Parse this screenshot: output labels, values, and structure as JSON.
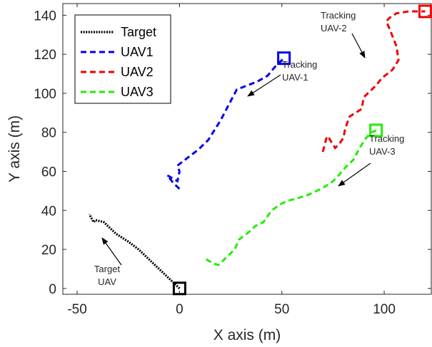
{
  "chart_data": {
    "type": "line",
    "xlabel": "X axis (m)",
    "ylabel": "Y axis (m)",
    "xlim": [
      -57,
      123
    ],
    "ylim": [
      -3,
      146
    ],
    "xticks": [
      -50,
      0,
      50,
      100
    ],
    "yticks": [
      0,
      20,
      40,
      60,
      80,
      100,
      120,
      140
    ],
    "grid": false,
    "legend_position": "top-left",
    "series": [
      {
        "name": "Target",
        "color": "#000000",
        "style": "dotted",
        "points": [
          [
            0,
            0
          ],
          [
            -5,
            5
          ],
          [
            -10,
            10
          ],
          [
            -15,
            15
          ],
          [
            -20,
            20
          ],
          [
            -25,
            24
          ],
          [
            -31,
            28
          ],
          [
            -37,
            34
          ],
          [
            -41,
            35
          ],
          [
            -42,
            34
          ],
          [
            -43,
            36
          ],
          [
            -44,
            38
          ]
        ]
      },
      {
        "name": "UAV1",
        "color": "#0000ee",
        "style": "dashed",
        "points": [
          [
            0,
            51
          ],
          [
            -3,
            54
          ],
          [
            -6,
            58
          ],
          [
            -1,
            55
          ],
          [
            0,
            60
          ],
          [
            -1,
            63
          ],
          [
            4,
            67
          ],
          [
            9,
            71
          ],
          [
            14,
            76
          ],
          [
            17,
            81
          ],
          [
            20,
            86
          ],
          [
            23,
            92
          ],
          [
            26,
            98
          ],
          [
            28,
            102
          ],
          [
            33,
            104
          ],
          [
            38,
            106
          ],
          [
            43,
            109
          ],
          [
            47,
            114
          ],
          [
            49,
            116
          ],
          [
            51,
            118
          ]
        ]
      },
      {
        "name": "UAV2",
        "color": "#ee0000",
        "style": "dashed",
        "points": [
          [
            70,
            70
          ],
          [
            72,
            78
          ],
          [
            73,
            77
          ],
          [
            76,
            72
          ],
          [
            78,
            74
          ],
          [
            80,
            77
          ],
          [
            81,
            82
          ],
          [
            83,
            88
          ],
          [
            86,
            90
          ],
          [
            89,
            92
          ],
          [
            90,
            98
          ],
          [
            92,
            100
          ],
          [
            96,
            104
          ],
          [
            99,
            108
          ],
          [
            104,
            112
          ],
          [
            107,
            117
          ],
          [
            106,
            124
          ],
          [
            103,
            132
          ],
          [
            101,
            137
          ],
          [
            103,
            139
          ],
          [
            106,
            141
          ],
          [
            112,
            142
          ],
          [
            120,
            142
          ]
        ]
      },
      {
        "name": "UAV3",
        "color": "#22ee00",
        "style": "dashed",
        "points": [
          [
            13,
            15
          ],
          [
            16,
            13
          ],
          [
            19,
            12
          ],
          [
            23,
            16
          ],
          [
            27,
            20
          ],
          [
            29,
            25
          ],
          [
            34,
            29
          ],
          [
            37,
            32
          ],
          [
            41,
            34
          ],
          [
            45,
            40
          ],
          [
            49,
            43
          ],
          [
            53,
            45
          ],
          [
            57,
            46
          ],
          [
            63,
            48
          ],
          [
            69,
            51
          ],
          [
            74,
            54
          ],
          [
            77,
            57
          ],
          [
            81,
            62
          ],
          [
            85,
            66
          ],
          [
            88,
            72
          ],
          [
            91,
            77
          ],
          [
            94,
            80
          ],
          [
            96,
            81
          ]
        ]
      }
    ],
    "annotations": [
      {
        "text_lines": [
          "Target",
          "UAV"
        ],
        "color": "#262626"
      },
      {
        "text_lines": [
          "Tracking",
          "UAV-1"
        ],
        "color": "#262626"
      },
      {
        "text_lines": [
          "Tracking",
          "UAV-2"
        ],
        "color": "#262626"
      },
      {
        "text_lines": [
          "Tracking",
          "UAV-3"
        ],
        "color": "#262626"
      }
    ],
    "end_markers": [
      {
        "series": "Target",
        "color": "#000000",
        "x": 0,
        "y": 0
      },
      {
        "series": "UAV1",
        "color": "#0000ee",
        "x": 51,
        "y": 118
      },
      {
        "series": "UAV2",
        "color": "#ee0000",
        "x": 120,
        "y": 142
      },
      {
        "series": "UAV3",
        "color": "#22ee00",
        "x": 96,
        "y": 81
      }
    ]
  }
}
